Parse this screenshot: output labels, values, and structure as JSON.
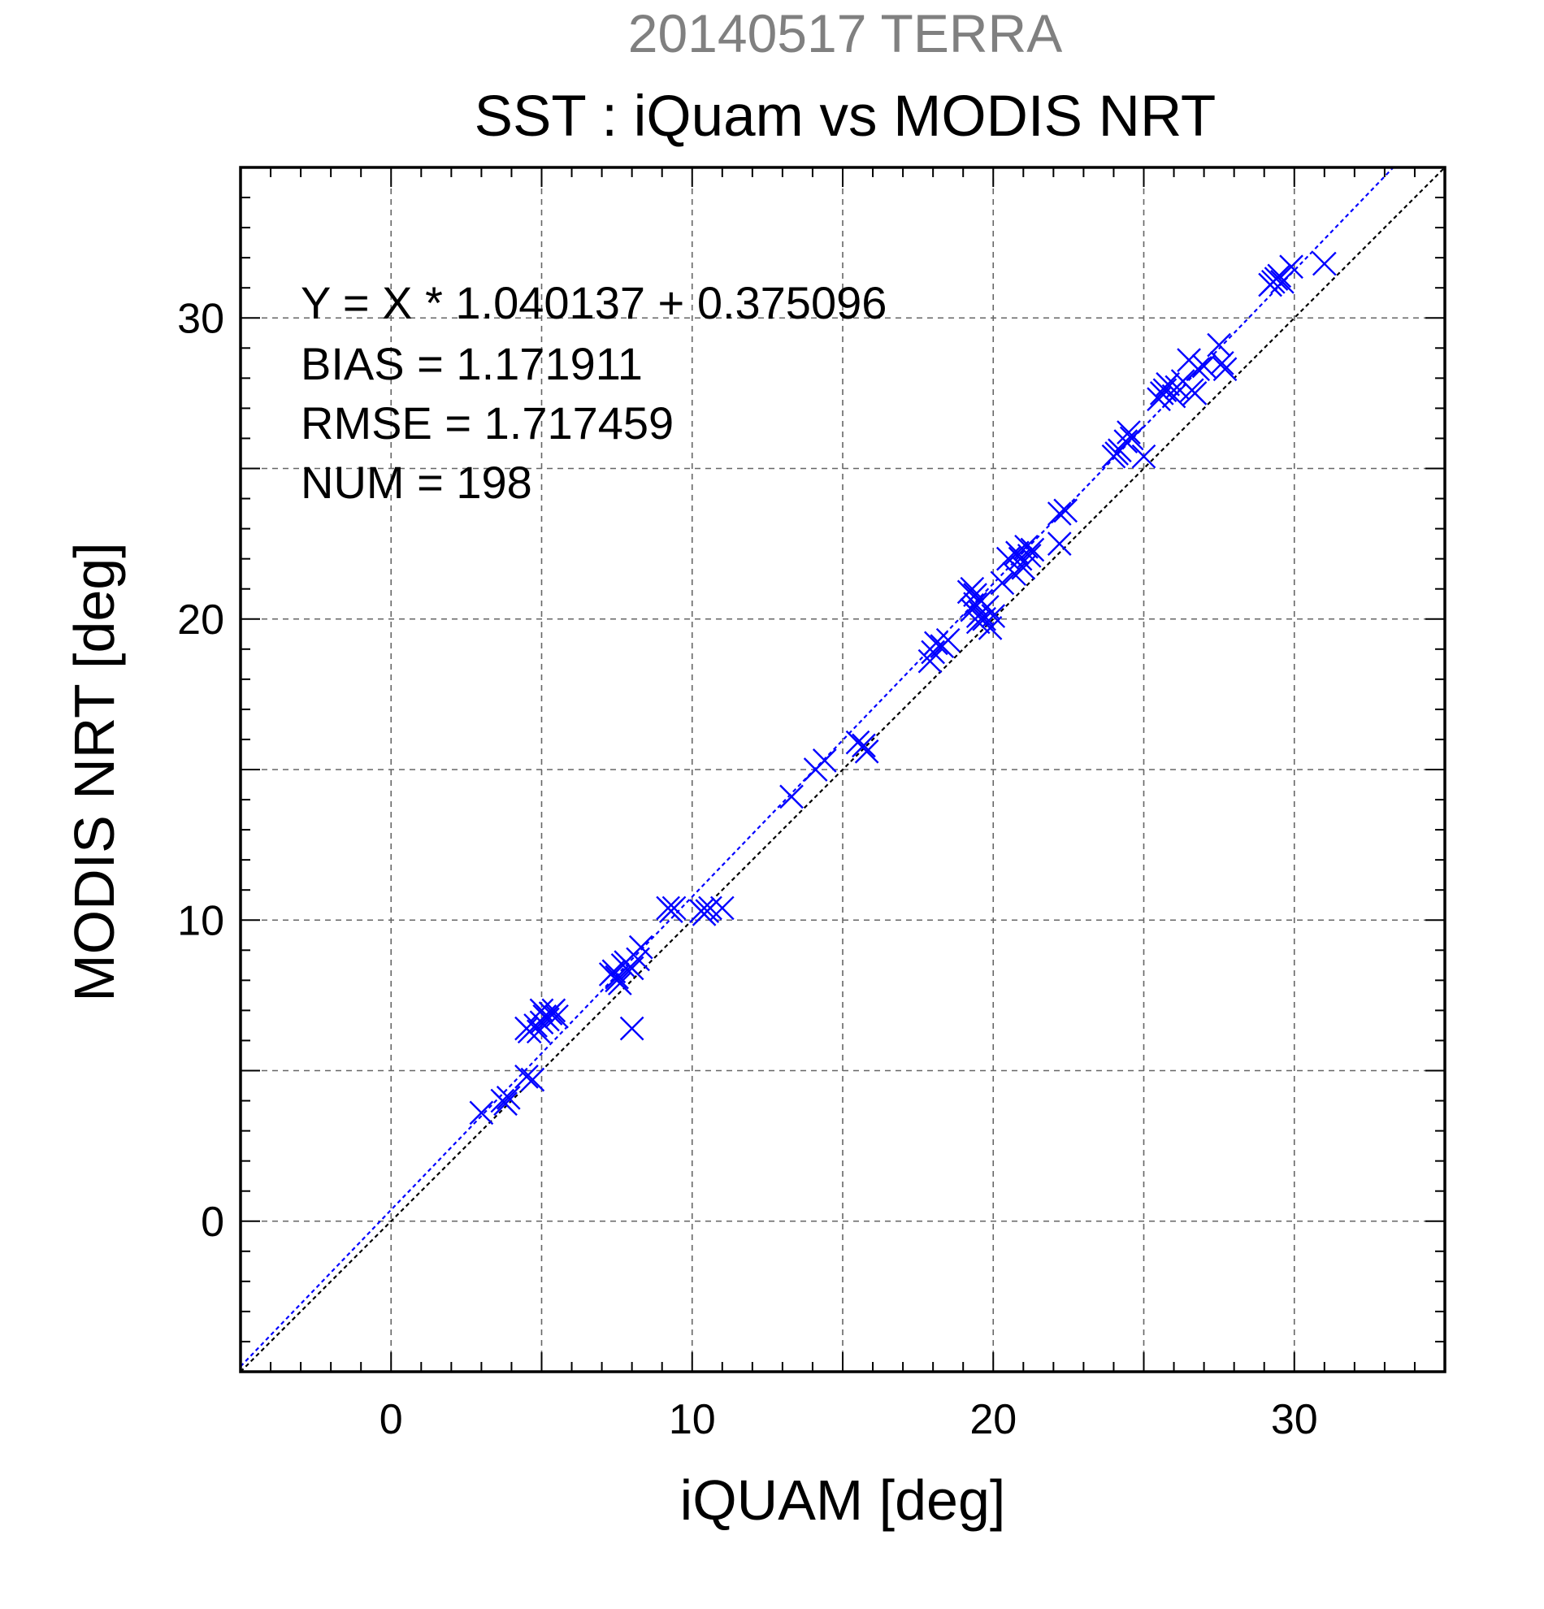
{
  "chart_data": {
    "type": "scatter",
    "title": "SST : iQuam vs MODIS NRT",
    "supertitle": "20140517 TERRA",
    "xlabel": "iQUAM [deg]",
    "ylabel": "MODIS NRT [deg]",
    "xlim": [
      -5,
      35
    ],
    "ylim": [
      -5,
      35
    ],
    "xticks": [
      0,
      10,
      20,
      30
    ],
    "yticks": [
      0,
      10,
      20,
      30
    ],
    "grid": true,
    "grid_step": 5,
    "colors": {
      "points": "#0000ff",
      "fit_line": "#0000ff",
      "identity_line": "#000000",
      "grid": "#666666",
      "supertitle": "#808080"
    },
    "stats": [
      "Y = X * 1.040137 + 0.375096",
      "BIAS = 1.171911",
      "RMSE = 1.717459",
      "NUM = 198"
    ],
    "fit": {
      "slope": 1.040137,
      "intercept": 0.375096
    },
    "series": [
      {
        "marker": "x",
        "x": [
          3.0,
          3.7,
          3.8,
          3.9,
          4.5,
          4.7,
          4.5,
          4.6,
          4.8,
          4.9,
          5.0,
          5.1,
          5.2,
          5.3,
          5.4,
          5.5,
          5.0,
          7.3,
          7.4,
          7.5,
          7.6,
          7.7,
          7.8,
          7.5,
          8.0,
          8.2,
          8.3,
          8.0,
          9.2,
          9.3,
          9.4,
          10.3,
          10.4,
          10.5,
          10.6,
          11.0,
          13.3,
          14.1,
          14.4,
          15.5,
          15.7,
          15.8,
          17.9,
          18.0,
          18.1,
          18.3,
          18.5,
          19.2,
          19.3,
          19.4,
          19.3,
          19.4,
          19.5,
          19.6,
          19.5,
          19.6,
          19.7,
          19.8,
          19.9,
          20.0,
          20.3,
          20.5,
          20.7,
          20.8,
          20.9,
          21.0,
          21.1,
          21.2,
          21.3,
          22.2,
          22.4,
          22.2,
          24.0,
          24.1,
          24.2,
          24.4,
          24.5,
          24.6,
          25.0,
          25.5,
          25.6,
          25.7,
          25.8,
          26.0,
          26.1,
          26.3,
          26.5,
          26.6,
          26.7,
          26.8,
          27.0,
          27.5,
          27.6,
          27.7,
          29.2,
          29.3,
          29.4,
          29.5,
          29.6,
          29.9,
          31.0
        ],
        "y": [
          3.6,
          4.0,
          3.9,
          4.1,
          4.8,
          4.7,
          6.4,
          6.3,
          6.5,
          6.3,
          6.6,
          6.8,
          6.7,
          6.9,
          7.0,
          6.8,
          7.0,
          8.2,
          8.3,
          8.1,
          7.9,
          8.5,
          8.6,
          8.0,
          8.4,
          8.7,
          9.1,
          6.4,
          10.4,
          10.3,
          10.4,
          10.3,
          10.2,
          10.3,
          10.4,
          10.4,
          14.1,
          15.0,
          15.3,
          15.9,
          15.8,
          15.6,
          18.6,
          18.9,
          19.2,
          19.1,
          19.3,
          20.9,
          21.0,
          20.8,
          20.3,
          20.5,
          20.1,
          20.6,
          19.9,
          20.2,
          20.0,
          20.4,
          19.7,
          20.1,
          21.2,
          22.0,
          21.5,
          22.2,
          22.0,
          21.7,
          22.4,
          22.1,
          22.3,
          23.5,
          23.6,
          22.5,
          25.4,
          25.5,
          25.6,
          25.9,
          26.2,
          26.0,
          25.4,
          27.3,
          27.5,
          27.6,
          27.8,
          27.4,
          27.7,
          27.9,
          28.6,
          27.6,
          27.5,
          28.3,
          28.4,
          29.1,
          28.5,
          28.3,
          31.1,
          31.2,
          31.3,
          31.4,
          31.2,
          31.7,
          31.8
        ]
      }
    ]
  }
}
